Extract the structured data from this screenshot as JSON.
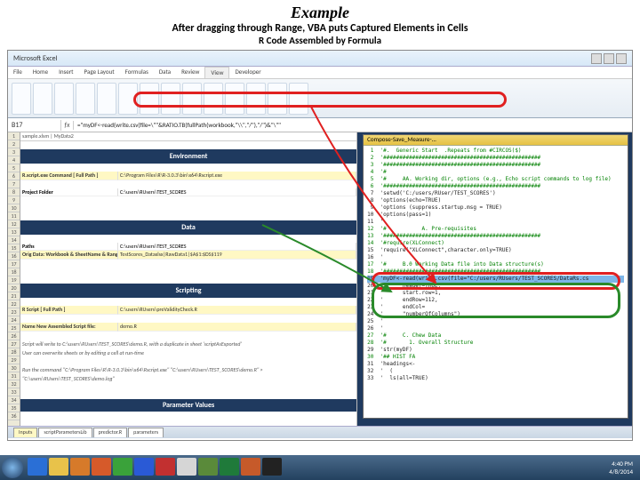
{
  "slide": {
    "title": "Example",
    "line1": "After dragging through Range, VBA puts Captured Elements in Cells",
    "line2": "R Code Assembled by Formula"
  },
  "window": {
    "title": "Microsoft Excel"
  },
  "ribbon": {
    "tabs": [
      "File",
      "Home",
      "Insert",
      "Page Layout",
      "Formulas",
      "Data",
      "Review",
      "View",
      "Developer"
    ],
    "active": "View"
  },
  "formula": {
    "namebox": "B17",
    "fx": "fx",
    "value": "=\"myDF<-read(write.csv(file=\\\"\"&RATIO.TB(fullPath(workbook,\"\\\\\",\"/\"),\"/\")&\"\\\"\""
  },
  "left": {
    "header": "sample.xlsm | MyData2",
    "sections": {
      "env": "Environment",
      "data": "Data",
      "scripting": "Scripting",
      "params": "Parameter Values"
    },
    "rows": {
      "rscript_label": "R.script.exe Command  [ Full Path ]",
      "rscript_val": "C:\\Program Files\\R\\R-3.0.3\\bin\\x64\\Rscript.exe",
      "folder_label": "Project Folder",
      "folder_val": "C:\\users\\RUsers\\TEST_SCORES",
      "paths_label": "Paths",
      "paths_val": "C:\\users\\RUsers\\TEST_SCORES",
      "origdata_label": "Orig Data: Workbook & SheetName & Range:",
      "origdata_val": "TestScores_Dataxlsx|RawData1|$A$1:$DS$119",
      "script_label": "R Script [ Full Path ]",
      "script_val": "C:\\users\\RUsers\\preValidityCheck.R",
      "name_label": "Name New Assembled Script file:",
      "name_val": "demo.R",
      "note1": "Script will write to C:\\users\\RUsers\\TEST_SCORES\\demo.R, with a duplicate in sheet 'scriptAsExported'",
      "note2": "User can overwrite sheets or by editing a cell at run-time",
      "note3": "Run the command \"C:\\Program Files\\R\\R-3.0.3\\bin\\x64\\Rscript.exe\" \"C:\\users\\RUsers\\TEST_SCORES\\demo.R\" >",
      "note4": "\"C:\\users\\RUsers\\TEST_SCORES\\demo.log\""
    }
  },
  "vba": {
    "title": "Compose-Save_Measure-...",
    "lines": [
      "'#.  Generic Start  .Repeats from #CIRCOS($)",
      "'#################################################",
      "'#################################################",
      "'#",
      "'#     AA. Working dir, options (e.g., Echo script commands to log file)",
      "'#################################################",
      "'setwd('C:/users/RUser/TEST_SCORES')",
      "'options(echo=TRUE)",
      "'options (suppress.startup.msg = TRUE)",
      "'options(pass=1)",
      "'",
      "'#           A. Pre-requisites",
      "'#################################################",
      "'#require(XLConnect)",
      "'require(\"XLConnect\",character.only=TRUE)",
      "'",
      "'#     B.0 Working Data file into Data structure(s)",
      "'#################################################",
      "'myDF<-read(write.csv(file=\"C:/users/RUsers/TEST_SCORES/DataRs.cs",
      "'      header=TRUE,",
      "'      start.row=1,",
      "'      endRow=112,",
      "'      endCol=",
      "'      \"numberOfColumns\")",
      "'",
      "'",
      "'#     C. Chew Data",
      "'#       1. Overall Structure",
      "'str(myDF)",
      "'## HIST FA",
      "'headings<-",
      "'  (",
      "'  ls(all=TRUE)"
    ]
  },
  "sheettabs": [
    "Inputs",
    "scriptParametersLib",
    "predictor.R",
    "parameters"
  ],
  "taskbar": {
    "icons": [
      {
        "name": "ie-icon",
        "color": "#2a6fd6"
      },
      {
        "name": "explorer-icon",
        "color": "#e8c24a"
      },
      {
        "name": "media-icon",
        "color": "#d67a2a"
      },
      {
        "name": "firefox-icon",
        "color": "#d65a2a"
      },
      {
        "name": "chrome-icon",
        "color": "#3aa23a"
      },
      {
        "name": "word-icon",
        "color": "#2a5ad6"
      },
      {
        "name": "acrobat-icon",
        "color": "#c23030"
      },
      {
        "name": "paint-icon",
        "color": "#d6d6d6"
      },
      {
        "name": "x-icon",
        "color": "#5a8a3a"
      },
      {
        "name": "excel-icon",
        "color": "#1f7a3a"
      },
      {
        "name": "ppt-icon",
        "color": "#c65a2a"
      },
      {
        "name": "cmd-icon",
        "color": "#222"
      }
    ],
    "time": "4:40 PM",
    "date": "4/8/2014"
  },
  "colors": {
    "band": "#1f3a5f",
    "yellow": "#fff8c4",
    "red": "#e02020",
    "green": "#2a8a2a"
  }
}
